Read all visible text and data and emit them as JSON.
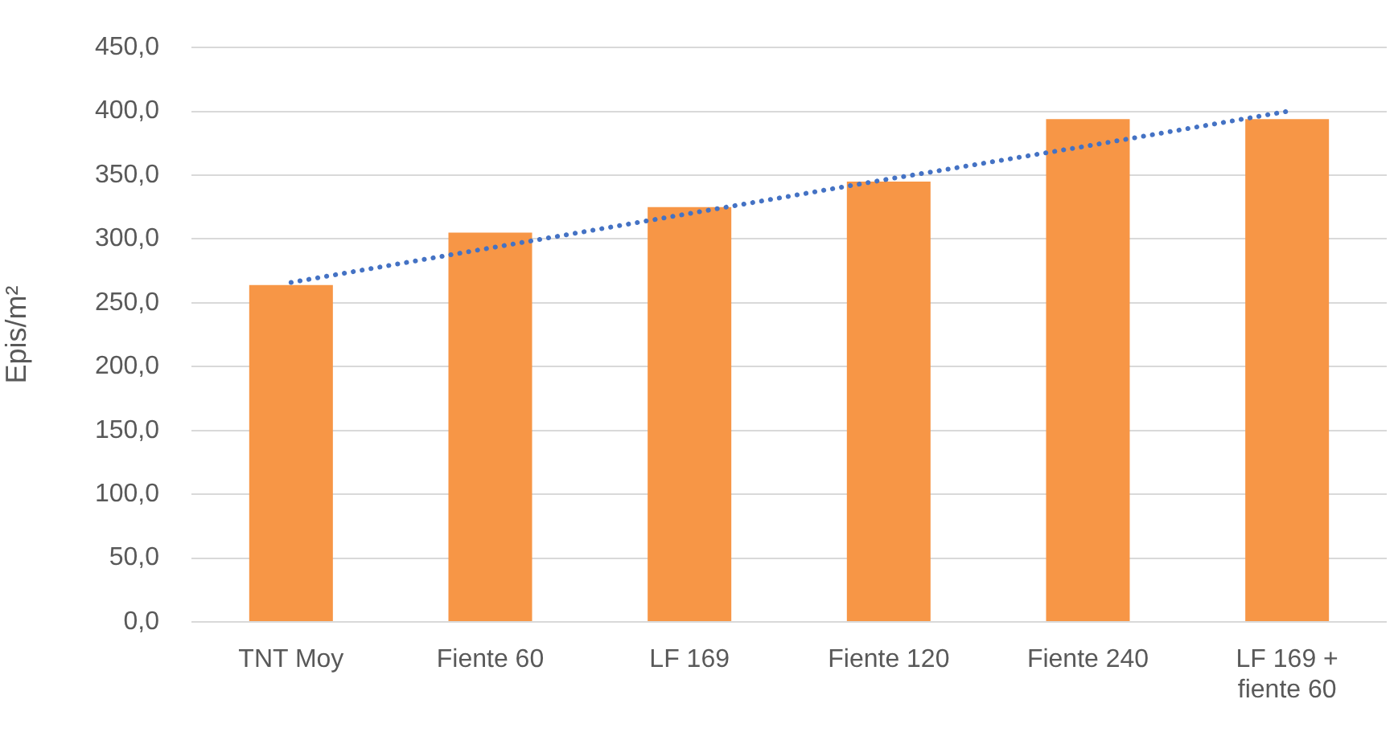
{
  "chart_data": {
    "type": "bar",
    "ylabel": "Epis/m²",
    "categories": [
      "TNT Moy",
      "Fiente 60",
      "LF 169",
      "Fiente 120",
      "Fiente 240",
      "LF 169 + fiente 60"
    ],
    "series": [
      {
        "color": "#f79646",
        "values": [
          264,
          305,
          325,
          345,
          394,
          394
        ]
      },
      {
        "type": "line",
        "color": "#4472c4",
        "line_style": "dotted",
        "values": [
          266,
          293,
          320,
          347,
          373,
          400
        ]
      }
    ],
    "ylim": [
      0,
      450
    ],
    "yticks": [
      {
        "value": 0,
        "label": "0,0"
      },
      {
        "value": 50,
        "label": "50,0"
      },
      {
        "value": 100,
        "label": "100,0"
      },
      {
        "value": 150,
        "label": "150,0"
      },
      {
        "value": 200,
        "label": "200,0"
      },
      {
        "value": 250,
        "label": "250,0"
      },
      {
        "value": 300,
        "label": "300,0"
      },
      {
        "value": 350,
        "label": "350,0"
      },
      {
        "value": 400,
        "label": "400,0"
      },
      {
        "value": 450,
        "label": "450,0"
      }
    ],
    "grid": "y",
    "legend": false
  }
}
